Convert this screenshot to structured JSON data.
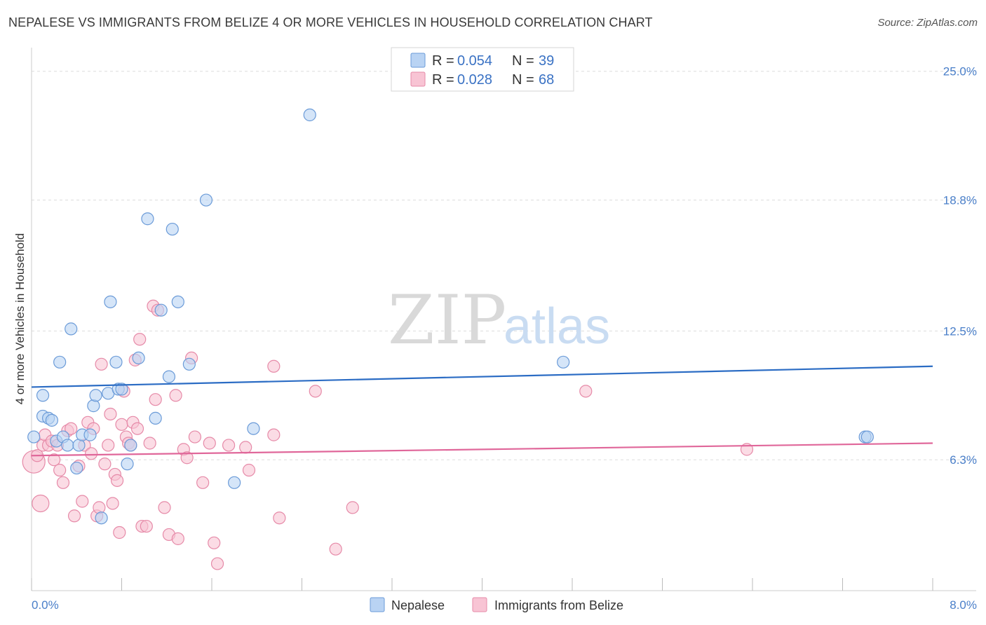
{
  "title": "NEPALESE VS IMMIGRANTS FROM BELIZE 4 OR MORE VEHICLES IN HOUSEHOLD CORRELATION CHART",
  "source": "Source: ZipAtlas.com",
  "watermark": {
    "zip": "ZIP",
    "atlas": "atlas"
  },
  "colors": {
    "nepalese_fill": "#b9d3f3",
    "nepalese_stroke": "#6b9bd8",
    "nepalese_line": "#2b6cc4",
    "belize_fill": "#f8c4d4",
    "belize_stroke": "#e68aa8",
    "belize_line": "#e0679a",
    "tick_text": "#4a7fc9",
    "grid": "#dddddd"
  },
  "legend": {
    "rows": [
      {
        "r_label": "R = ",
        "r_value": "0.054",
        "n_label": "N = ",
        "n_value": "39",
        "series": "nepalese"
      },
      {
        "r_label": "R = ",
        "r_value": "0.028",
        "n_label": "N = ",
        "n_value": "68",
        "series": "belize"
      }
    ]
  },
  "bottom_legend": [
    "Nepalese",
    "Immigrants from Belize"
  ],
  "chart_data": {
    "type": "scatter",
    "title": "NEPALESE VS IMMIGRANTS FROM BELIZE 4 OR MORE VEHICLES IN HOUSEHOLD CORRELATION CHART",
    "xlabel": "",
    "ylabel": "4 or more Vehicles in Household",
    "xlim": [
      0,
      8
    ],
    "ylim": [
      0,
      25.8
    ],
    "x_tick_labels": [
      "0.0%",
      "8.0%"
    ],
    "y_ticks": [
      6.3,
      12.5,
      18.8,
      25.0
    ],
    "y_tick_labels": [
      "6.3%",
      "12.5%",
      "18.8%",
      "25.0%"
    ],
    "grid": true,
    "legend_placement": "top-center",
    "series": [
      {
        "name": "Nepalese",
        "trend": {
          "x": [
            0,
            8
          ],
          "y": [
            9.8,
            10.8
          ]
        },
        "points": [
          [
            0.02,
            7.4
          ],
          [
            0.1,
            8.4
          ],
          [
            0.1,
            9.4
          ],
          [
            0.15,
            8.3
          ],
          [
            0.18,
            8.2
          ],
          [
            0.22,
            7.2
          ],
          [
            0.25,
            11.0
          ],
          [
            0.28,
            7.4
          ],
          [
            0.32,
            7.0
          ],
          [
            0.35,
            12.6
          ],
          [
            0.4,
            5.9
          ],
          [
            0.42,
            7.0
          ],
          [
            0.45,
            7.5
          ],
          [
            0.52,
            7.5
          ],
          [
            0.55,
            8.9
          ],
          [
            0.57,
            9.4
          ],
          [
            0.62,
            3.5
          ],
          [
            0.68,
            9.5
          ],
          [
            0.7,
            13.9
          ],
          [
            0.75,
            11.0
          ],
          [
            0.77,
            9.7
          ],
          [
            0.8,
            9.7
          ],
          [
            0.85,
            6.1
          ],
          [
            0.88,
            7.0
          ],
          [
            0.95,
            11.2
          ],
          [
            1.03,
            17.9
          ],
          [
            1.1,
            8.3
          ],
          [
            1.15,
            13.5
          ],
          [
            1.22,
            10.3
          ],
          [
            1.25,
            17.4
          ],
          [
            1.3,
            13.9
          ],
          [
            1.4,
            10.9
          ],
          [
            1.55,
            18.8
          ],
          [
            1.8,
            5.2
          ],
          [
            1.97,
            7.8
          ],
          [
            2.47,
            22.9
          ],
          [
            4.72,
            11.0
          ],
          [
            7.4,
            7.4
          ],
          [
            7.42,
            7.4
          ]
        ]
      },
      {
        "name": "Immigrants from Belize",
        "trend": {
          "x": [
            0,
            8
          ],
          "y": [
            6.5,
            7.1
          ]
        },
        "points": [
          [
            0.02,
            6.2
          ],
          [
            0.05,
            6.5
          ],
          [
            0.08,
            4.2
          ],
          [
            0.1,
            7.0
          ],
          [
            0.12,
            7.5
          ],
          [
            0.15,
            7.0
          ],
          [
            0.18,
            7.2
          ],
          [
            0.2,
            6.3
          ],
          [
            0.23,
            7.0
          ],
          [
            0.25,
            5.8
          ],
          [
            0.28,
            5.2
          ],
          [
            0.32,
            7.7
          ],
          [
            0.35,
            7.8
          ],
          [
            0.38,
            3.6
          ],
          [
            0.42,
            6.0
          ],
          [
            0.45,
            4.3
          ],
          [
            0.47,
            7.0
          ],
          [
            0.5,
            8.1
          ],
          [
            0.53,
            6.6
          ],
          [
            0.55,
            7.8
          ],
          [
            0.58,
            3.6
          ],
          [
            0.6,
            4.0
          ],
          [
            0.62,
            10.9
          ],
          [
            0.65,
            6.1
          ],
          [
            0.68,
            7.0
          ],
          [
            0.7,
            8.5
          ],
          [
            0.72,
            4.2
          ],
          [
            0.74,
            5.6
          ],
          [
            0.76,
            5.3
          ],
          [
            0.78,
            2.8
          ],
          [
            0.8,
            8.0
          ],
          [
            0.82,
            9.6
          ],
          [
            0.84,
            7.4
          ],
          [
            0.86,
            7.1
          ],
          [
            0.88,
            7.0
          ],
          [
            0.9,
            8.1
          ],
          [
            0.92,
            11.1
          ],
          [
            0.94,
            7.8
          ],
          [
            0.96,
            12.1
          ],
          [
            0.98,
            3.1
          ],
          [
            1.02,
            3.1
          ],
          [
            1.05,
            7.1
          ],
          [
            1.08,
            13.7
          ],
          [
            1.1,
            9.2
          ],
          [
            1.12,
            13.5
          ],
          [
            1.18,
            4.0
          ],
          [
            1.22,
            2.7
          ],
          [
            1.28,
            9.4
          ],
          [
            1.3,
            2.5
          ],
          [
            1.35,
            6.8
          ],
          [
            1.38,
            6.4
          ],
          [
            1.42,
            11.2
          ],
          [
            1.45,
            7.4
          ],
          [
            1.52,
            5.2
          ],
          [
            1.58,
            7.1
          ],
          [
            1.62,
            2.3
          ],
          [
            1.65,
            1.3
          ],
          [
            1.75,
            7.0
          ],
          [
            1.9,
            6.9
          ],
          [
            1.93,
            5.8
          ],
          [
            2.15,
            10.8
          ],
          [
            2.15,
            7.5
          ],
          [
            2.2,
            3.5
          ],
          [
            2.52,
            9.6
          ],
          [
            2.7,
            2.0
          ],
          [
            2.85,
            4.0
          ],
          [
            4.92,
            9.6
          ],
          [
            6.35,
            6.8
          ]
        ]
      }
    ]
  }
}
